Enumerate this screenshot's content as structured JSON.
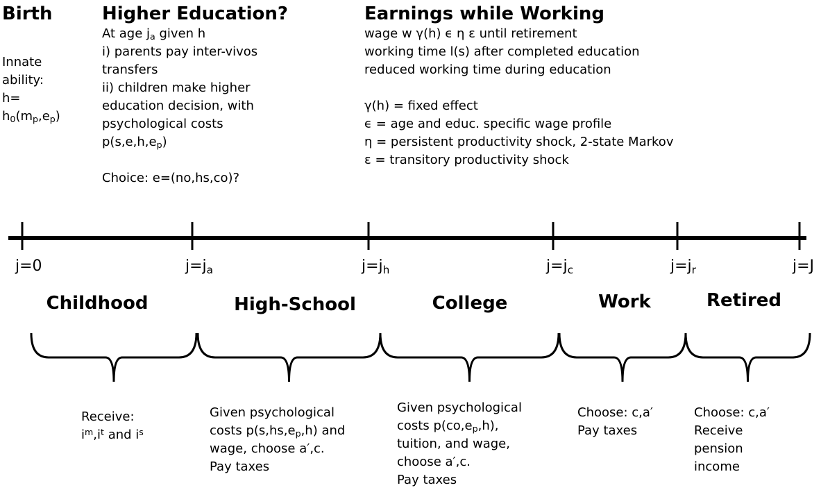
{
  "header": {
    "sections": [
      {
        "title": "Birth",
        "paragraphs": [
          [
            "Innate",
            "ability:",
            "h=",
            [
              "h",
              {
                "sub": "0"
              },
              "(m",
              {
                "sub": "p"
              },
              ",e",
              {
                "sub": "p"
              },
              ")"
            ]
          ]
        ]
      },
      {
        "title": "Higher Education?",
        "paragraphs": [
          [
            [
              "At age j",
              {
                "sub": "a"
              },
              " given h"
            ],
            "i) parents pay inter-vivos",
            "transfers",
            "ii) children make higher",
            "education decision, with",
            "psychological costs",
            [
              "p(s,e,h,e",
              {
                "sub": "p"
              },
              ")"
            ]
          ],
          [
            "Choice: e=(no,hs,co)?"
          ]
        ]
      },
      {
        "title": "Earnings while Working",
        "paragraphs": [
          [
            "wage w γ(h) ϵ η ε until retirement",
            "working time l(s) after completed education",
            "reduced working time during education"
          ],
          [
            "γ(h) = fixed effect",
            "ϵ = age and educ. specific wage profile",
            "η = persistent productivity shock, 2-state Markov",
            "ε = transitory productivity shock"
          ]
        ]
      }
    ]
  },
  "timeline": {
    "ticks": [
      "j=0",
      [
        "j=j",
        {
          "sub": "a"
        }
      ],
      [
        "j=j",
        {
          "sub": "h"
        }
      ],
      [
        "j=j",
        {
          "sub": "c"
        }
      ],
      [
        "j=j",
        {
          "sub": "r"
        }
      ],
      "j=J"
    ]
  },
  "phases": [
    {
      "name": "Childhood",
      "lines": [
        "Receive:",
        [
          "i",
          {
            "sup": "m"
          },
          ",i",
          {
            "sup": "t"
          },
          " and i",
          {
            "sup": "s"
          }
        ]
      ]
    },
    {
      "name": "High-School",
      "lines": [
        "Given psychological",
        [
          "costs p(s,hs,e",
          {
            "sub": "p"
          },
          ",h) and"
        ],
        "wage, choose a′,c.",
        "Pay taxes"
      ]
    },
    {
      "name": "College",
      "lines": [
        "Given psychological",
        [
          "costs p(co,e",
          {
            "sub": "p"
          },
          ",h),"
        ],
        "tuition, and wage,",
        "choose a′,c.",
        "Pay taxes"
      ]
    },
    {
      "name": "Work",
      "lines": [
        "Choose: c,a′",
        "Pay taxes"
      ]
    },
    {
      "name": "Retired",
      "lines": [
        "Choose: c,a′",
        "Receive",
        "pension",
        "income"
      ]
    }
  ]
}
